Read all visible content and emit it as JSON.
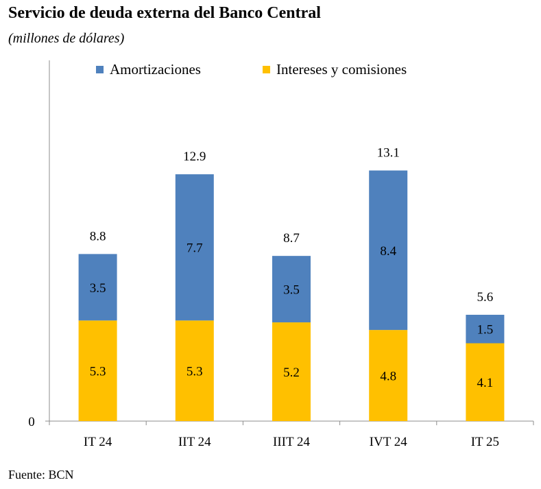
{
  "title": "Servicio de deuda externa del Banco Central",
  "subtitle": "(millones de dólares)",
  "source": "Fuente: BCN",
  "chart_data": {
    "type": "bar",
    "stacked": true,
    "categories": [
      "IT 24",
      "IIT 24",
      "IIIT 24",
      "IVT 24",
      "IT 25"
    ],
    "series": [
      {
        "name": "Intereses y comisiones",
        "values": [
          5.3,
          5.3,
          5.2,
          4.8,
          4.1
        ],
        "labels": [
          "5.3",
          "5.3",
          "5.2",
          "4.8",
          "4.1"
        ],
        "color": "#FFC000"
      },
      {
        "name": "Amortizaciones",
        "values": [
          3.5,
          7.7,
          3.5,
          8.4,
          1.5
        ],
        "labels": [
          "3.5",
          "7.7",
          "3.5",
          "8.4",
          "1.5"
        ],
        "color": "#4F81BD"
      }
    ],
    "totals": [
      "8.8",
      "12.9",
      "8.7",
      "13.1",
      "5.6"
    ],
    "legend": [
      "Amortizaciones",
      "Intereses y comisiones"
    ],
    "legend_position": "top",
    "y_tick_labels": [
      "0"
    ],
    "ylim": [
      0,
      19
    ],
    "grid": false
  }
}
